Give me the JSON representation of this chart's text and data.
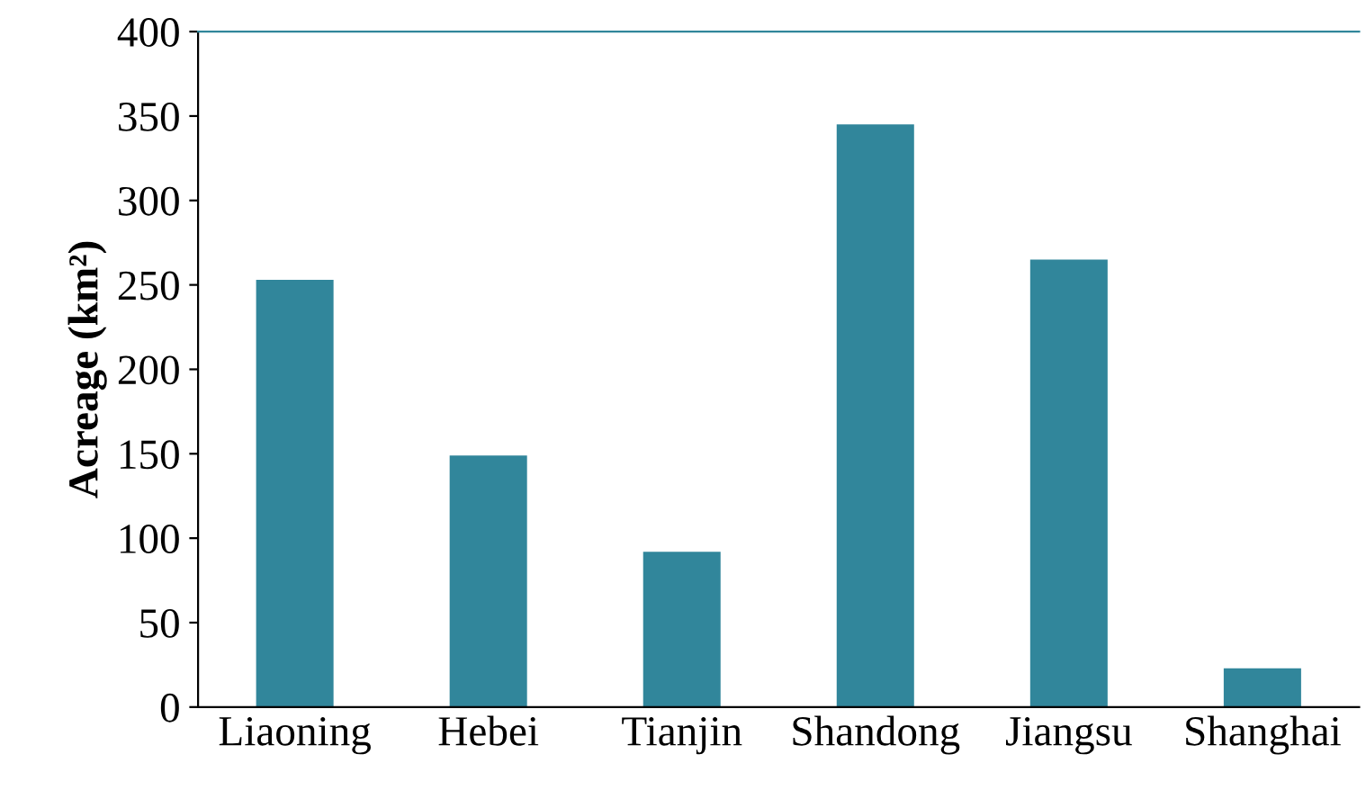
{
  "chart_data": {
    "type": "bar",
    "ylabel": "Acreage (km²)",
    "categories": [
      "Liaoning",
      "Hebei",
      "Tianjin",
      "Shandong",
      "Jiangsu",
      "Shanghai"
    ],
    "values": [
      253,
      149,
      92,
      345,
      265,
      23
    ],
    "color": "#31869b",
    "ylim": [
      0,
      400
    ],
    "yticks": [
      0,
      50,
      100,
      150,
      200,
      250,
      300,
      350,
      400
    ],
    "grid": false,
    "legend": false
  }
}
